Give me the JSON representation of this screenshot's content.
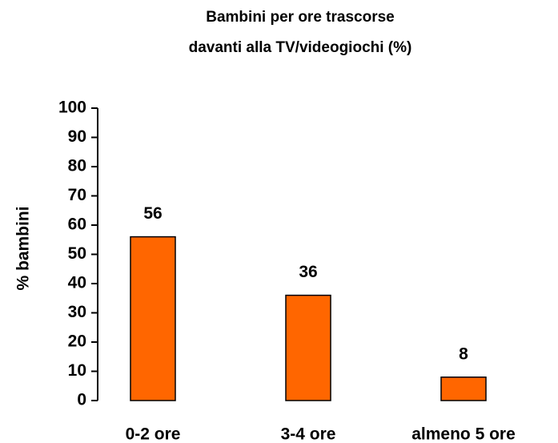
{
  "chart_data": {
    "type": "bar",
    "title": [
      "Bambini per ore trascorse",
      "davanti alla TV/videogiochi (%)"
    ],
    "y_label": "% bambini",
    "categories": [
      "0-2 ore",
      "3-4 ore",
      "almeno 5 ore"
    ],
    "values": [
      56,
      36,
      8
    ],
    "color": "#ff6600",
    "ylim": [
      0,
      100
    ],
    "yticks": [
      0,
      10,
      20,
      30,
      40,
      50,
      60,
      70,
      80,
      90,
      100
    ],
    "grid": false
  }
}
